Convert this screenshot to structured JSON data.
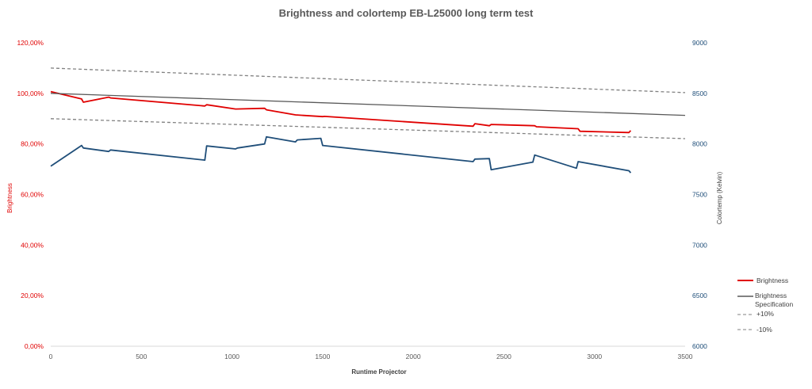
{
  "chart_data": {
    "type": "line",
    "title": "Brightness and colortemp EB-L25000 long term test",
    "xlabel": "Runtime Projector",
    "ylabel_left": "Brightness",
    "ylabel_right": "Colortemp (Kelvin)",
    "xlim": [
      0,
      3500
    ],
    "ylim_left": [
      0,
      1.2
    ],
    "ylim_right": [
      6000,
      9000
    ],
    "x_ticks": [
      "0",
      "500",
      "1000",
      "1500",
      "2000",
      "2500",
      "3000",
      "3500"
    ],
    "y_ticks_left": [
      "0,00%",
      "20,00%",
      "40,00%",
      "60,00%",
      "80,00%",
      "100,00%",
      "120,00%"
    ],
    "y_ticks_right": [
      "6000",
      "6500",
      "7000",
      "7500",
      "8000",
      "8500",
      "9000"
    ],
    "grid": false,
    "legend_position": "right",
    "series": [
      {
        "name": "Brightness",
        "axis": "left",
        "color": "#e00000",
        "style": "solid",
        "points": [
          [
            0,
            1.007
          ],
          [
            170,
            0.978
          ],
          [
            180,
            0.965
          ],
          [
            320,
            0.985
          ],
          [
            330,
            0.982
          ],
          [
            850,
            0.95
          ],
          [
            860,
            0.955
          ],
          [
            1020,
            0.938
          ],
          [
            1180,
            0.941
          ],
          [
            1190,
            0.935
          ],
          [
            1350,
            0.915
          ],
          [
            1500,
            0.908
          ],
          [
            1510,
            0.909
          ],
          [
            2330,
            0.87
          ],
          [
            2340,
            0.88
          ],
          [
            2420,
            0.872
          ],
          [
            2430,
            0.877
          ],
          [
            2670,
            0.872
          ],
          [
            2680,
            0.868
          ],
          [
            2910,
            0.86
          ],
          [
            2920,
            0.85
          ],
          [
            3190,
            0.845
          ],
          [
            3200,
            0.853
          ]
        ]
      },
      {
        "name": "Brightness Specification",
        "axis": "left",
        "color": "#595959",
        "style": "solid",
        "points": [
          [
            0,
            1.0
          ],
          [
            3500,
            0.913
          ]
        ]
      },
      {
        "name": "+10%",
        "axis": "left",
        "color": "#808080",
        "style": "dashed",
        "points": [
          [
            0,
            1.1
          ],
          [
            3500,
            1.003
          ]
        ]
      },
      {
        "name": "-10%",
        "axis": "left",
        "color": "#808080",
        "style": "dashed",
        "points": [
          [
            0,
            0.9
          ],
          [
            3500,
            0.821
          ]
        ]
      },
      {
        "name": "Colortemp",
        "axis": "right",
        "color": "#1f4e79",
        "style": "solid",
        "points": [
          [
            0,
            7780
          ],
          [
            170,
            7985
          ],
          [
            180,
            7960
          ],
          [
            320,
            7925
          ],
          [
            330,
            7940
          ],
          [
            850,
            7840
          ],
          [
            860,
            7980
          ],
          [
            1020,
            7950
          ],
          [
            1030,
            7960
          ],
          [
            1180,
            8000
          ],
          [
            1190,
            8070
          ],
          [
            1350,
            8020
          ],
          [
            1360,
            8040
          ],
          [
            1490,
            8055
          ],
          [
            1500,
            7985
          ],
          [
            2330,
            7825
          ],
          [
            2340,
            7850
          ],
          [
            2420,
            7855
          ],
          [
            2430,
            7745
          ],
          [
            2660,
            7820
          ],
          [
            2670,
            7890
          ],
          [
            2900,
            7760
          ],
          [
            2910,
            7825
          ],
          [
            3190,
            7735
          ],
          [
            3200,
            7715
          ]
        ]
      }
    ],
    "legend": [
      {
        "label": "Brightness",
        "color": "#e00000",
        "style": "solid"
      },
      {
        "label": "Brightness Specification",
        "color": "#595959",
        "style": "solid"
      },
      {
        "label": "+10%",
        "color": "#808080",
        "style": "dashed"
      },
      {
        "label": "-10%",
        "color": "#808080",
        "style": "dashed"
      }
    ]
  }
}
